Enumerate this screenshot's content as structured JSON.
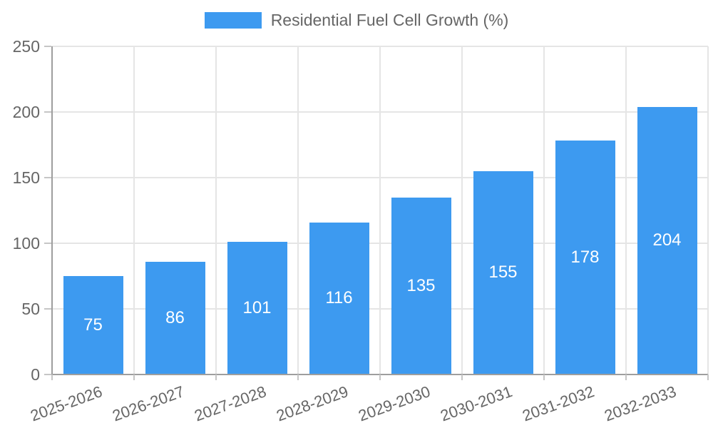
{
  "legend": {
    "label": "Residential Fuel Cell Growth (%)"
  },
  "chart_data": {
    "type": "bar",
    "title": "Residential Fuel Cell Growth (%)",
    "categories": [
      "2025-2026",
      "2026-2027",
      "2027-2028",
      "2028-2029",
      "2029-2030",
      "2030-2031",
      "2031-2032",
      "2032-2033"
    ],
    "values": [
      75,
      86,
      101,
      116,
      135,
      155,
      178,
      204
    ],
    "xlabel": "",
    "ylabel": "",
    "ylim": [
      0,
      250
    ],
    "yticks": [
      0,
      50,
      100,
      150,
      200,
      250
    ],
    "legend_position": "top",
    "grid": true,
    "value_labels": "inside-center",
    "x_label_rotation_deg": -20,
    "colors": {
      "bar": "#3D9AF0",
      "value_label": "#FFFFFF",
      "tick_text": "#666666",
      "grid_line": "#E5E5E5",
      "axis_border": "#9E9E9E",
      "tick_mark": "#C6C6C6",
      "background": "#FFFFFF"
    }
  }
}
